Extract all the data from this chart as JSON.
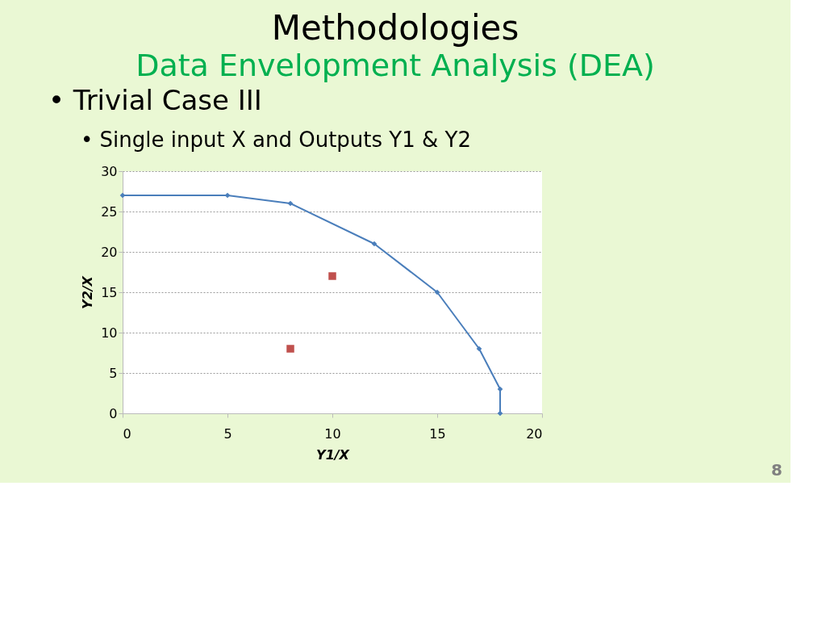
{
  "chart_data": {
    "type": "line",
    "title": "Methodologies",
    "subtitle": "Data Envelopment Analysis (DEA)",
    "annotations": [
      "• Trivial Case III",
      "• Single input X and Outputs Y1 & Y2",
      "8"
    ],
    "xlabel": "Y1/X",
    "ylabel": "Y2/X",
    "series": [
      {
        "color": "#4a7ebb",
        "marker": "diamond",
        "line_style": "solid",
        "x": [
          0,
          5,
          8,
          12,
          15,
          17,
          18,
          18
        ],
        "values": [
          27,
          27,
          26,
          21,
          15,
          8,
          3,
          0
        ]
      },
      {
        "type": "scatter",
        "color": "#c0504d",
        "marker": "square",
        "x": [
          8,
          10
        ],
        "values": [
          8,
          17
        ]
      }
    ],
    "xlim": [
      0,
      20
    ],
    "xticks": [
      0,
      5,
      10,
      15,
      20
    ],
    "ylim": [
      0,
      30
    ],
    "yticks": [
      0,
      5,
      10,
      15,
      20,
      25,
      30
    ],
    "grid": "y"
  }
}
